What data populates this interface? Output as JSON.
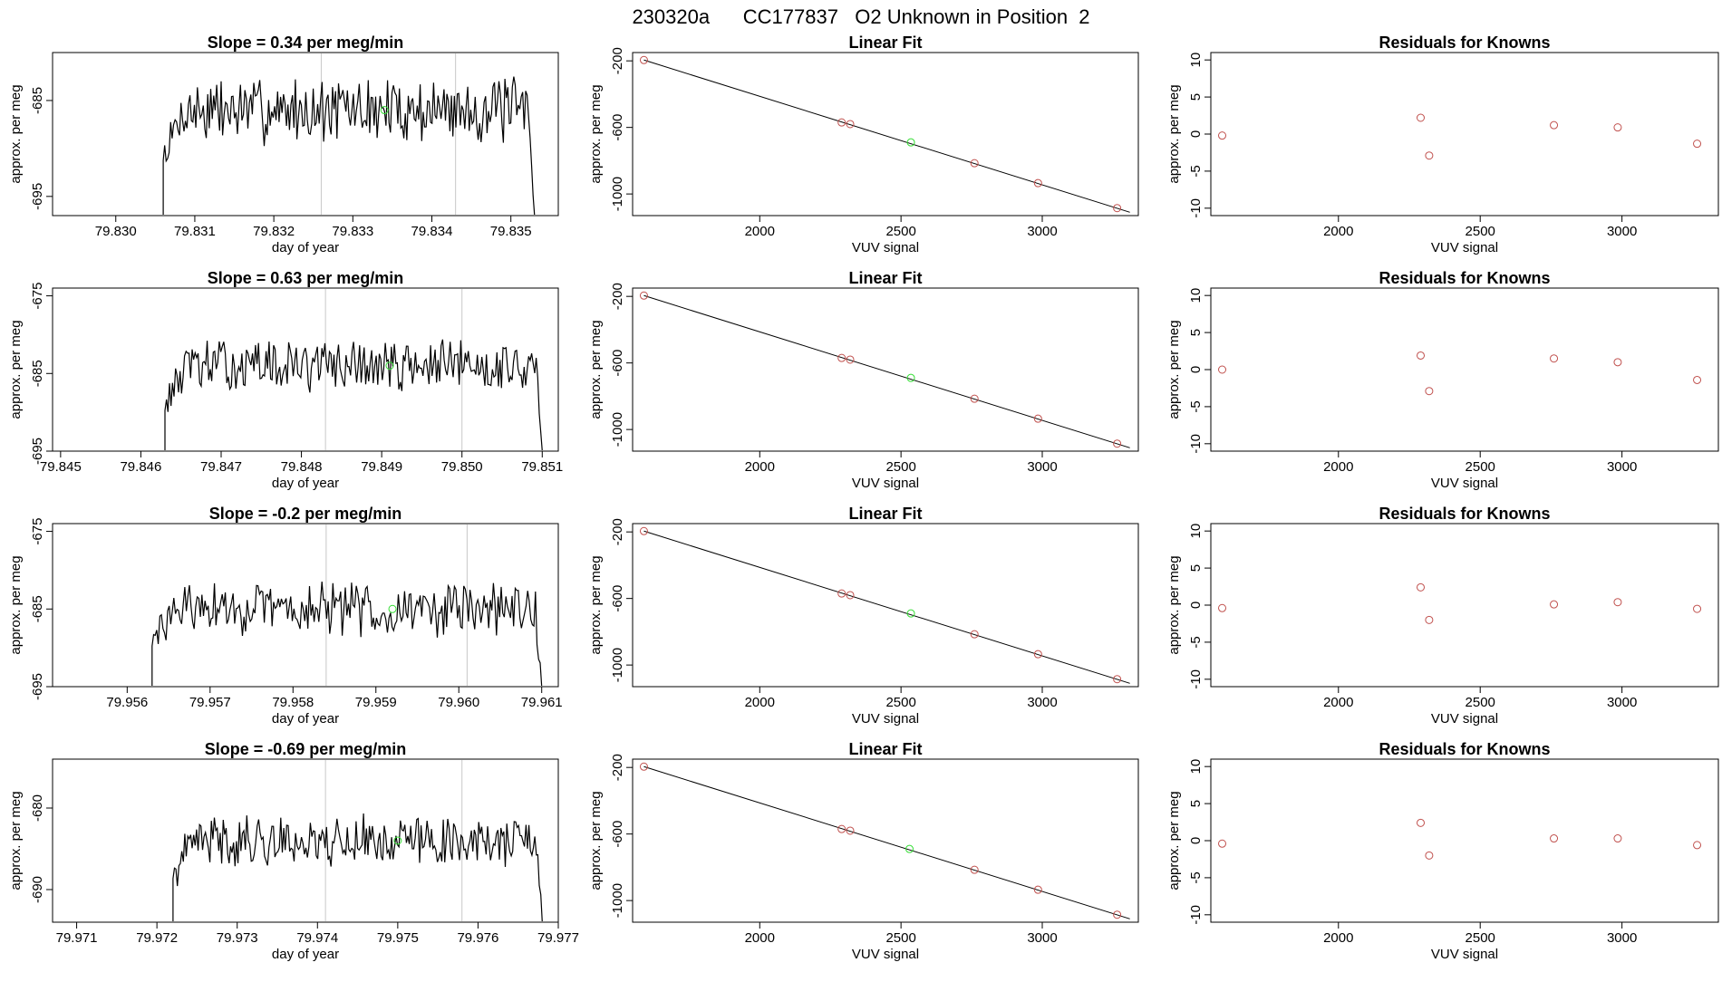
{
  "figure_title": "230320a      CC177837   O2 Unknown in Position  2",
  "colors": {
    "trace": "#000000",
    "frame": "#000000",
    "marker_line": "#c8c8c8",
    "known_point": "#c0504d",
    "unknown_point": "#33dd33"
  },
  "chart_data": [
    {
      "type": "line",
      "panel": "time-series",
      "row": 1,
      "title": "Slope =  0.34  per meg/min",
      "xlabel": "day of year",
      "ylabel": "approx. per meg",
      "xlim": [
        79.8292,
        79.8356
      ],
      "ylim": [
        -697,
        -680
      ],
      "x_ticks": [
        "79.830",
        "79.831",
        "79.832",
        "79.833",
        "79.834",
        "79.835"
      ],
      "y_ticks": [
        "-685",
        "-695"
      ],
      "markers_x": [
        79.8326,
        79.8343
      ],
      "signal": {
        "x_start": 79.8306,
        "x_end": 79.8353,
        "level": -686,
        "amplitude": 2.8,
        "seed": 7,
        "n": 250,
        "floor": -697
      },
      "unknown_point": {
        "x": 79.8334,
        "y": -686
      }
    },
    {
      "type": "scatter",
      "panel": "linear-fit",
      "row": 1,
      "title": "Linear Fit",
      "xlabel": "VUV signal",
      "ylabel": "approx. per meg",
      "xlim": [
        1550,
        3340
      ],
      "ylim": [
        -1130,
        -150
      ],
      "x_ticks": [
        "2000",
        "2500",
        "3000"
      ],
      "y_ticks": [
        "-200",
        "-600",
        "-1000"
      ],
      "fit_line": {
        "x": [
          1590,
          3310
        ],
        "y": [
          -195,
          -1110
        ]
      },
      "known_points": {
        "x": [
          1590,
          2290,
          2320,
          2760,
          2985,
          3265
        ],
        "y": [
          -195,
          -570,
          -580,
          -815,
          -935,
          -1085
        ]
      },
      "unknown_point": {
        "x": 2535,
        "y": -690
      }
    },
    {
      "type": "scatter",
      "panel": "residuals",
      "row": 1,
      "title": "Residuals for Knowns",
      "xlabel": "VUV signal",
      "ylabel": "approx. per meg",
      "xlim": [
        1550,
        3340
      ],
      "ylim": [
        -11,
        11
      ],
      "x_ticks": [
        "2000",
        "2500",
        "3000"
      ],
      "y_ticks": [
        "-10",
        "-5",
        "0",
        "5",
        "10"
      ],
      "points": {
        "x": [
          1590,
          2290,
          2320,
          2760,
          2985,
          3265
        ],
        "y": [
          -0.2,
          2.2,
          -2.9,
          1.2,
          0.9,
          -1.3
        ]
      }
    },
    {
      "type": "line",
      "panel": "time-series",
      "row": 2,
      "title": "Slope =  0.63  per meg/min",
      "xlabel": "day of year",
      "ylabel": "approx. per meg",
      "xlim": [
        79.8449,
        79.8512
      ],
      "ylim": [
        -695,
        -674
      ],
      "x_ticks": [
        "79.845",
        "79.846",
        "79.847",
        "79.848",
        "79.849",
        "79.850",
        "79.851"
      ],
      "y_ticks": [
        "-675",
        "-685",
        "-695"
      ],
      "markers_x": [
        79.8483,
        79.85
      ],
      "signal": {
        "x_start": 79.8463,
        "x_end": 79.851,
        "level": -684,
        "amplitude": 2.7,
        "seed": 13,
        "n": 250,
        "floor": -695
      },
      "unknown_point": {
        "x": 79.8491,
        "y": -684
      }
    },
    {
      "type": "scatter",
      "panel": "linear-fit",
      "row": 2,
      "title": "Linear Fit",
      "xlabel": "VUV signal",
      "ylabel": "approx. per meg",
      "xlim": [
        1550,
        3340
      ],
      "ylim": [
        -1130,
        -150
      ],
      "x_ticks": [
        "2000",
        "2500",
        "3000"
      ],
      "y_ticks": [
        "-200",
        "-600",
        "-1000"
      ],
      "fit_line": {
        "x": [
          1590,
          3310
        ],
        "y": [
          -195,
          -1110
        ]
      },
      "known_points": {
        "x": [
          1590,
          2290,
          2320,
          2760,
          2985,
          3265
        ],
        "y": [
          -195,
          -570,
          -580,
          -815,
          -935,
          -1085
        ]
      },
      "unknown_point": {
        "x": 2535,
        "y": -690
      }
    },
    {
      "type": "scatter",
      "panel": "residuals",
      "row": 2,
      "title": "Residuals for Knowns",
      "xlabel": "VUV signal",
      "ylabel": "approx. per meg",
      "xlim": [
        1550,
        3340
      ],
      "ylim": [
        -11,
        11
      ],
      "x_ticks": [
        "2000",
        "2500",
        "3000"
      ],
      "y_ticks": [
        "-10",
        "-5",
        "0",
        "5",
        "10"
      ],
      "points": {
        "x": [
          1590,
          2290,
          2320,
          2760,
          2985,
          3265
        ],
        "y": [
          0.0,
          1.9,
          -2.9,
          1.5,
          1.0,
          -1.4
        ]
      }
    },
    {
      "type": "line",
      "panel": "time-series",
      "row": 3,
      "title": "Slope =  -0.2  per meg/min",
      "xlabel": "day of year",
      "ylabel": "approx. per meg",
      "xlim": [
        79.9551,
        79.9612
      ],
      "ylim": [
        -695,
        -674
      ],
      "x_ticks": [
        "79.956",
        "79.957",
        "79.958",
        "79.959",
        "79.960",
        "79.961"
      ],
      "y_ticks": [
        "-675",
        "-685",
        "-695"
      ],
      "markers_x": [
        79.9584,
        79.9601
      ],
      "signal": {
        "x_start": 79.9563,
        "x_end": 79.961,
        "level": -685,
        "amplitude": 2.8,
        "seed": 29,
        "n": 250,
        "floor": -695
      },
      "unknown_point": {
        "x": 79.9592,
        "y": -685
      }
    },
    {
      "type": "scatter",
      "panel": "linear-fit",
      "row": 3,
      "title": "Linear Fit",
      "xlabel": "VUV signal",
      "ylabel": "approx. per meg",
      "xlim": [
        1550,
        3340
      ],
      "ylim": [
        -1130,
        -150
      ],
      "x_ticks": [
        "2000",
        "2500",
        "3000"
      ],
      "y_ticks": [
        "-200",
        "-600",
        "-1000"
      ],
      "fit_line": {
        "x": [
          1590,
          3310
        ],
        "y": [
          -195,
          -1110
        ]
      },
      "known_points": {
        "x": [
          1590,
          2290,
          2320,
          2760,
          2985,
          3265
        ],
        "y": [
          -195,
          -570,
          -580,
          -815,
          -935,
          -1085
        ]
      },
      "unknown_point": {
        "x": 2535,
        "y": -690
      }
    },
    {
      "type": "scatter",
      "panel": "residuals",
      "row": 3,
      "title": "Residuals for Knowns",
      "xlabel": "VUV signal",
      "ylabel": "approx. per meg",
      "xlim": [
        1550,
        3340
      ],
      "ylim": [
        -11,
        11
      ],
      "points": {
        "x": [
          1590,
          2290,
          2320,
          2760,
          2985,
          3265
        ],
        "y": [
          -0.4,
          2.4,
          -2.0,
          0.1,
          0.4,
          -0.5
        ]
      },
      "x_ticks": [
        "2000",
        "2500",
        "3000"
      ],
      "y_ticks": [
        "-10",
        "-5",
        "0",
        "5",
        "10"
      ]
    },
    {
      "type": "line",
      "panel": "time-series",
      "row": 4,
      "title": "Slope =  -0.69  per meg/min",
      "xlabel": "day of year",
      "ylabel": "approx. per meg",
      "xlim": [
        79.9707,
        79.977
      ],
      "ylim": [
        -694,
        -674
      ],
      "x_ticks": [
        "79.971",
        "79.972",
        "79.973",
        "79.974",
        "79.975",
        "79.976",
        "79.977"
      ],
      "y_ticks": [
        "-680",
        "-690"
      ],
      "markers_x": [
        79.9741,
        79.9758
      ],
      "signal": {
        "x_start": 79.9722,
        "x_end": 79.9768,
        "level": -684,
        "amplitude": 2.6,
        "seed": 41,
        "n": 250,
        "floor": -694
      },
      "unknown_point": {
        "x": 79.975,
        "y": -684
      }
    },
    {
      "type": "scatter",
      "panel": "linear-fit",
      "row": 4,
      "title": "Linear Fit",
      "xlabel": "VUV signal",
      "ylabel": "approx. per meg",
      "xlim": [
        1550,
        3340
      ],
      "ylim": [
        -1130,
        -150
      ],
      "x_ticks": [
        "2000",
        "2500",
        "3000"
      ],
      "y_ticks": [
        "-200",
        "-600",
        "-1000"
      ],
      "fit_line": {
        "x": [
          1590,
          3310
        ],
        "y": [
          -195,
          -1110
        ]
      },
      "known_points": {
        "x": [
          1590,
          2290,
          2320,
          2760,
          2985,
          3265
        ],
        "y": [
          -195,
          -570,
          -580,
          -815,
          -935,
          -1085
        ]
      },
      "unknown_point": {
        "x": 2530,
        "y": -690
      }
    },
    {
      "type": "scatter",
      "panel": "residuals",
      "row": 4,
      "title": "Residuals for Knowns",
      "xlabel": "VUV signal",
      "ylabel": "approx. per meg",
      "xlim": [
        1550,
        3340
      ],
      "ylim": [
        -11,
        11
      ],
      "x_ticks": [
        "2000",
        "2500",
        "3000"
      ],
      "y_ticks": [
        "-10",
        "-5",
        "0",
        "5",
        "10"
      ],
      "points": {
        "x": [
          1590,
          2290,
          2320,
          2760,
          2985,
          3265
        ],
        "y": [
          -0.4,
          2.4,
          -2.0,
          0.3,
          0.3,
          -0.6
        ]
      }
    }
  ]
}
